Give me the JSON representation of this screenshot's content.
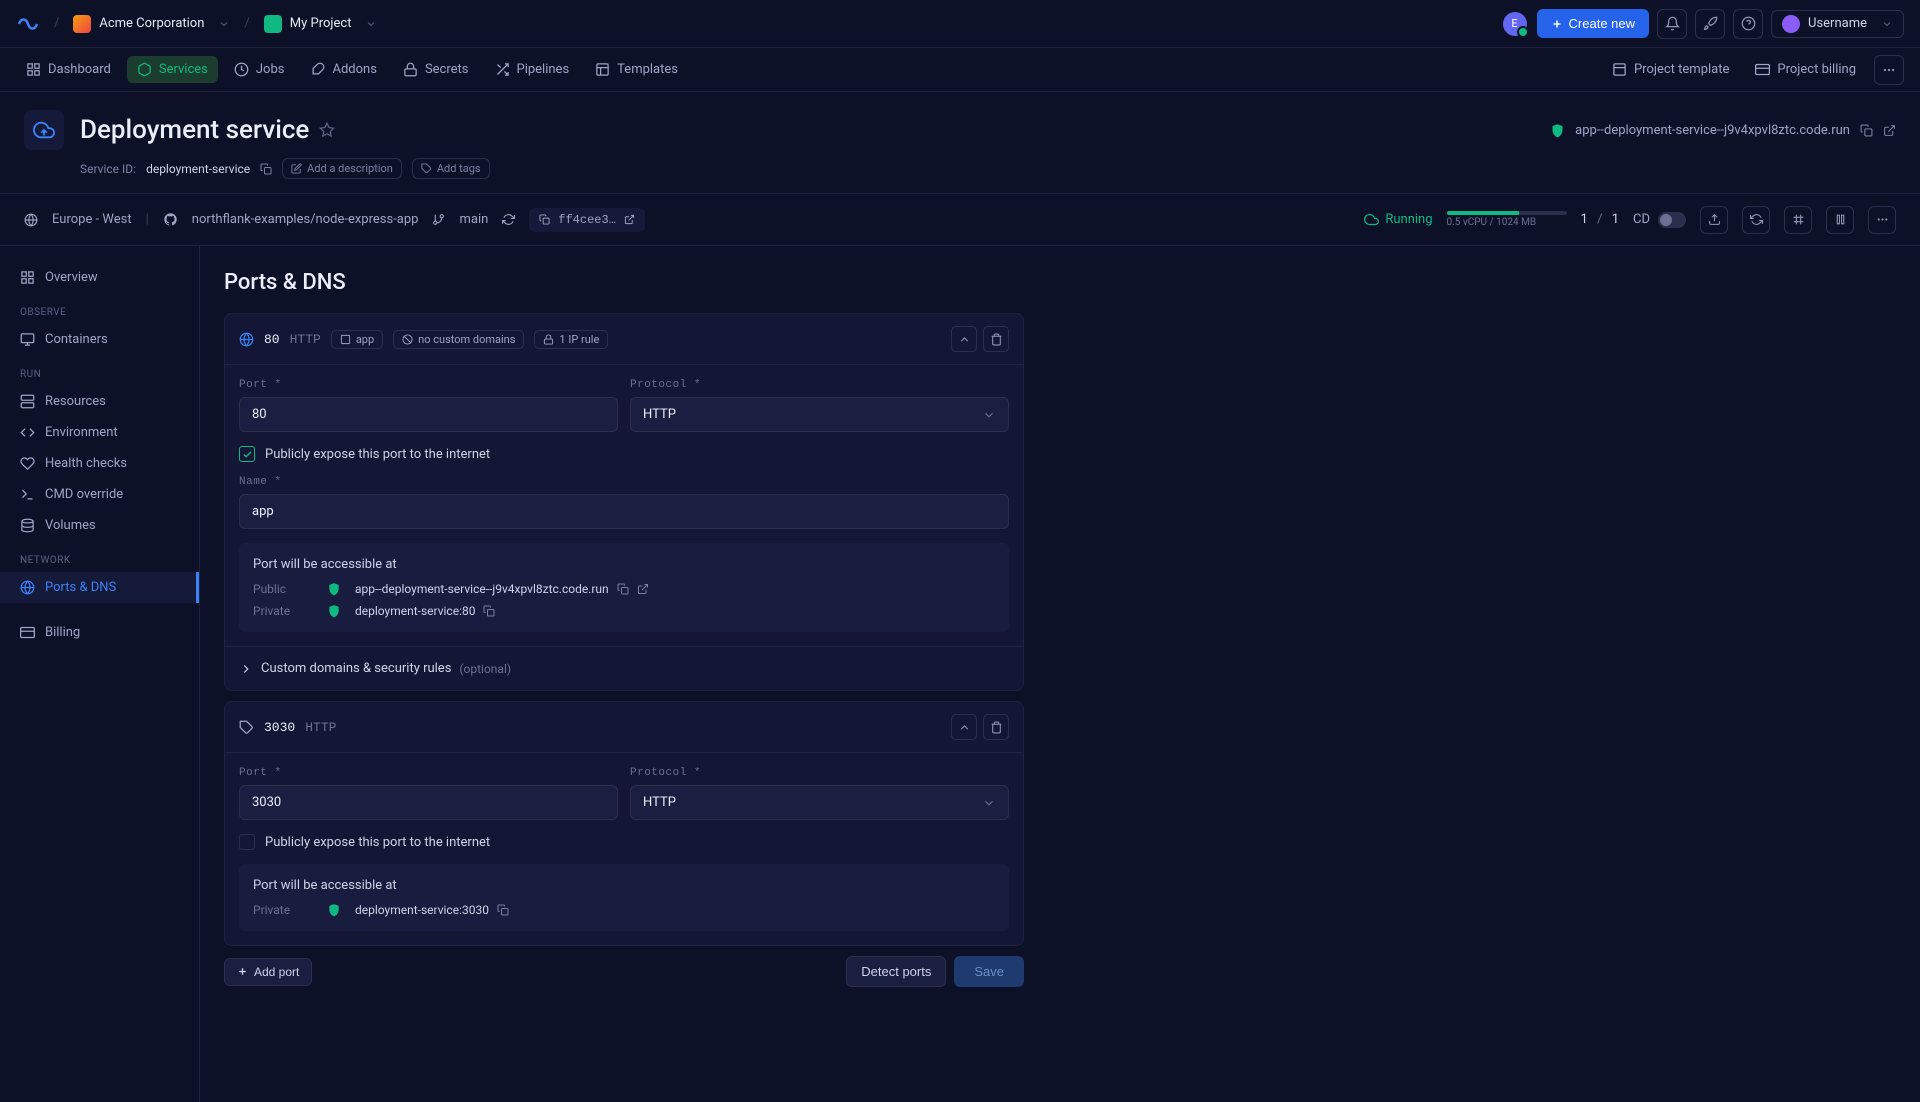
{
  "topbar": {
    "org": "Acme Corporation",
    "project": "My Project",
    "create_new": "Create new",
    "username": "Username",
    "avatar_letter": "E"
  },
  "nav": {
    "items": [
      {
        "label": "Dashboard"
      },
      {
        "label": "Services"
      },
      {
        "label": "Jobs"
      },
      {
        "label": "Addons"
      },
      {
        "label": "Secrets"
      },
      {
        "label": "Pipelines"
      },
      {
        "label": "Templates"
      }
    ],
    "right": [
      {
        "label": "Project template"
      },
      {
        "label": "Project billing"
      }
    ]
  },
  "header": {
    "title": "Deployment service",
    "service_id_label": "Service ID:",
    "service_id": "deployment-service",
    "add_description": "Add a description",
    "add_tags": "Add tags",
    "domain": "app--deployment-service--j9v4xpvl8ztc.code.run"
  },
  "subbar": {
    "region": "Europe - West",
    "repo": "northflank-examples/node-express-app",
    "branch": "main",
    "commit": "ff4cee3…",
    "running": "Running",
    "resource": "0.5 vCPU / 1024 MB",
    "frac_a": "1",
    "frac_sep": "/",
    "frac_b": "1",
    "cd": "CD"
  },
  "sidebar": {
    "overview": "Overview",
    "observe": "OBSERVE",
    "containers": "Containers",
    "run": "RUN",
    "resources": "Resources",
    "environment": "Environment",
    "health": "Health checks",
    "cmd": "CMD override",
    "volumes": "Volumes",
    "network": "NETWORK",
    "ports": "Ports & DNS",
    "billing": "Billing"
  },
  "main": {
    "title": "Ports & DNS",
    "cards": [
      {
        "icon": "globe",
        "port": "80",
        "proto": "HTTP",
        "pills": [
          "app",
          "no custom domains",
          "1 IP rule"
        ],
        "port_label": "Port *",
        "port_value": "80",
        "protocol_label": "Protocol *",
        "protocol_value": "HTTP",
        "expose_label": "Publicly expose this port to the internet",
        "exposed": true,
        "name_label": "Name *",
        "name_value": "app",
        "access_title": "Port will be accessible at",
        "access": [
          {
            "label": "Public",
            "url": "app--deployment-service--j9v4xpvl8ztc.code.run",
            "external": true
          },
          {
            "label": "Private",
            "url": "deployment-service:80",
            "external": false
          }
        ],
        "custom_label": "Custom domains & security rules",
        "custom_opt": "(optional)"
      },
      {
        "icon": "tag",
        "port": "3030",
        "proto": "HTTP",
        "pills": [],
        "port_label": "Port *",
        "port_value": "3030",
        "protocol_label": "Protocol *",
        "protocol_value": "HTTP",
        "expose_label": "Publicly expose this port to the internet",
        "exposed": false,
        "access_title": "Port will be accessible at",
        "access": [
          {
            "label": "Private",
            "url": "deployment-service:3030",
            "external": false
          }
        ]
      }
    ],
    "add_port": "Add port",
    "detect": "Detect ports",
    "save": "Save"
  }
}
